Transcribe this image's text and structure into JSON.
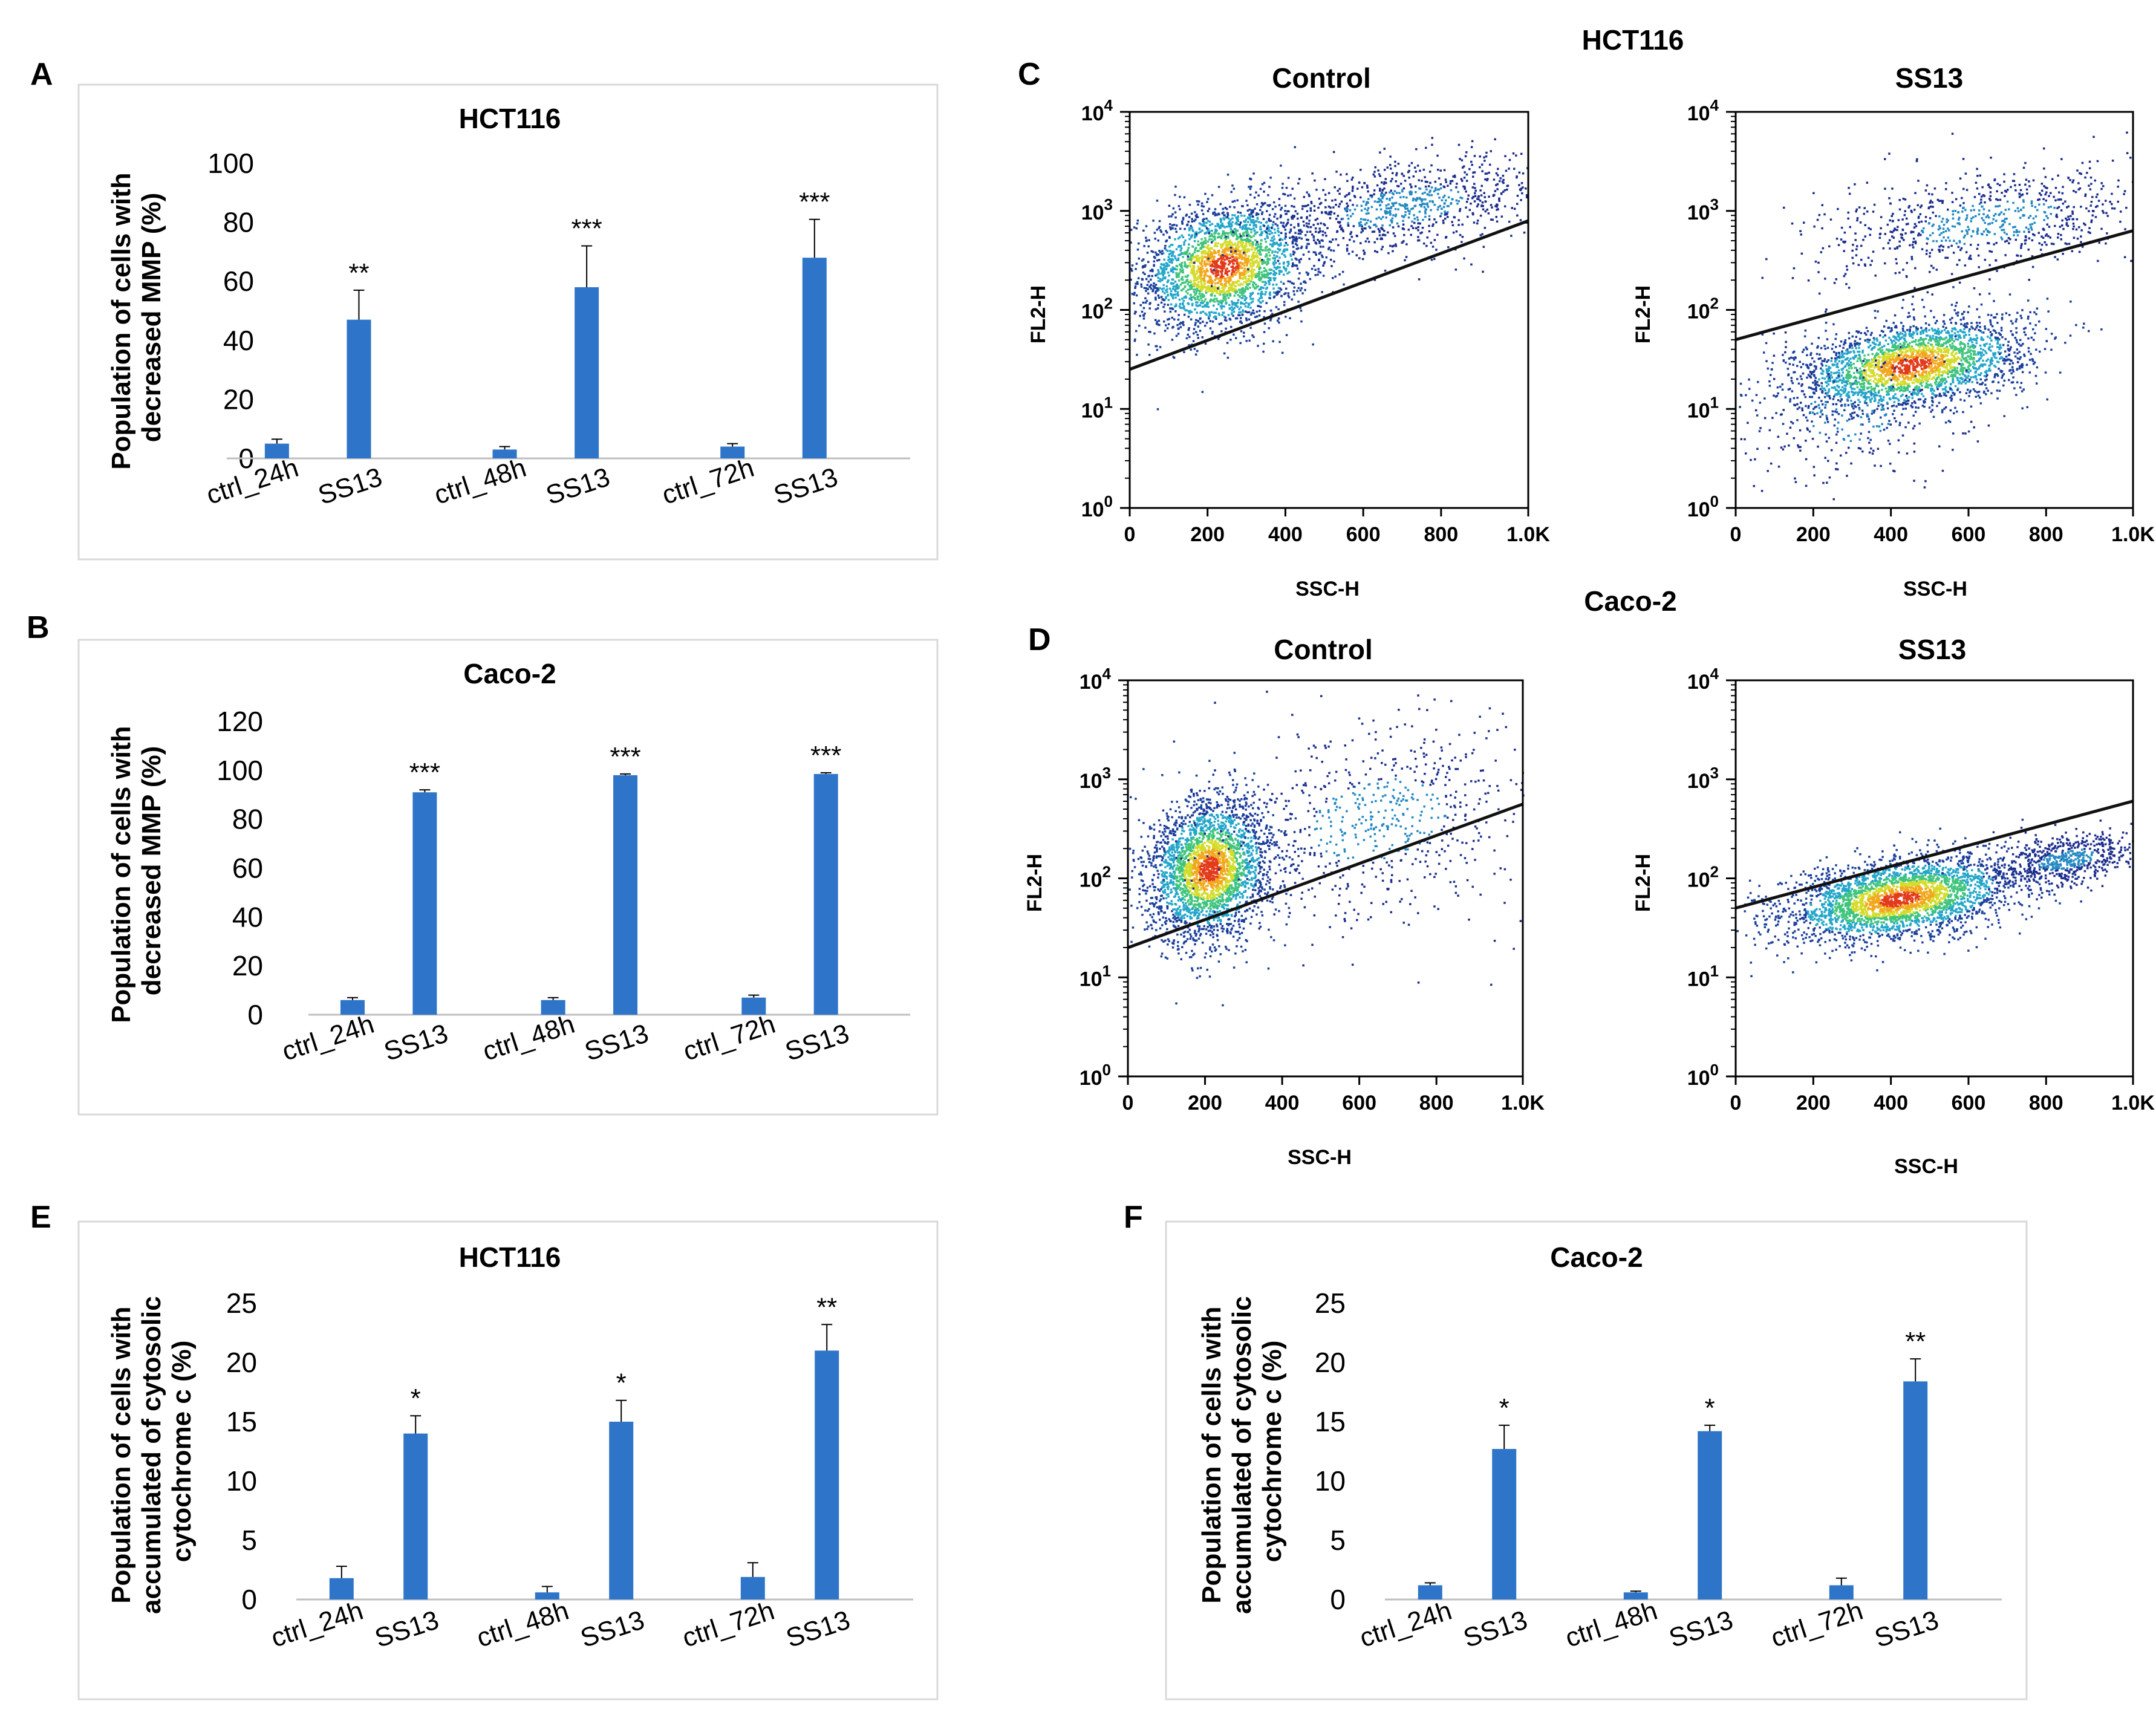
{
  "figure": {
    "panel_letters": [
      "A",
      "B",
      "C",
      "D",
      "E",
      "F"
    ],
    "flow_group_titles": [
      "HCT116",
      "Caco-2"
    ]
  },
  "colors": {
    "bar": "#2e75c9",
    "axis": "#000000",
    "frame": "#d9d9d9"
  },
  "chart_data": [
    {
      "panel": "A",
      "type": "bar",
      "title": "HCT116",
      "ylabel": [
        "Population of cells with",
        "decreased MMP (%)"
      ],
      "categories": [
        "ctrl_24h",
        "SS13",
        "ctrl_48h",
        "SS13",
        "ctrl_72h",
        "SS13"
      ],
      "values": [
        5,
        47,
        3,
        58,
        4,
        68
      ],
      "errors": [
        1.5,
        10,
        1,
        14,
        1,
        13
      ],
      "significance": [
        "",
        "**",
        "",
        "***",
        "",
        "***"
      ],
      "yticks": [
        "0",
        "20",
        "40",
        "60",
        "80",
        "100"
      ],
      "ylim": [
        0,
        100
      ]
    },
    {
      "panel": "B",
      "type": "bar",
      "title": "Caco-2",
      "ylabel": [
        "Population of cells with",
        "decreased MMP (%)"
      ],
      "categories": [
        "ctrl_24h",
        "SS13",
        "ctrl_48h",
        "SS13",
        "ctrl_72h",
        "SS13"
      ],
      "values": [
        6,
        91,
        6,
        98,
        7,
        98.5
      ],
      "errors": [
        1,
        1,
        1,
        0.5,
        1,
        0.5
      ],
      "significance": [
        "",
        "***",
        "",
        "***",
        "",
        "***"
      ],
      "yticks": [
        "0",
        "20",
        "40",
        "60",
        "80",
        "100",
        "120"
      ],
      "ylim": [
        0,
        120
      ]
    },
    {
      "panel": "E",
      "type": "bar",
      "title": "HCT116",
      "ylabel": [
        "Population of cells with",
        "accumulated of cytosolic",
        "cytochrome c (%)"
      ],
      "categories": [
        "ctrl_24h",
        "SS13",
        "ctrl_48h",
        "SS13",
        "ctrl_72h",
        "SS13"
      ],
      "values": [
        1.8,
        14,
        0.6,
        15,
        1.9,
        21
      ],
      "errors": [
        1,
        1.5,
        0.5,
        1.8,
        1.2,
        2.2
      ],
      "significance": [
        "",
        "*",
        "",
        "*",
        "",
        "**"
      ],
      "yticks": [
        "0",
        "5",
        "10",
        "15",
        "20",
        "25"
      ],
      "ylim": [
        0,
        25
      ]
    },
    {
      "panel": "F",
      "type": "bar",
      "title": "Caco-2",
      "ylabel": [
        "Population of cells with",
        "accumulated of cytosolic",
        "cytochrome c (%)"
      ],
      "categories": [
        "ctrl_24h",
        "SS13",
        "ctrl_48h",
        "SS13",
        "ctrl_72h",
        "SS13"
      ],
      "values": [
        1.2,
        12.7,
        0.6,
        14.2,
        1.2,
        18.4
      ],
      "errors": [
        0.2,
        2,
        0.1,
        0.5,
        0.6,
        1.9
      ],
      "significance": [
        "",
        "*",
        "",
        "*",
        "",
        "**"
      ],
      "yticks": [
        "0",
        "5",
        "10",
        "15",
        "20",
        "25"
      ],
      "ylim": [
        0,
        25
      ]
    },
    {
      "panel": "C",
      "type": "scatter",
      "group": "HCT116",
      "title": "Control",
      "xlabel": "SSC-H",
      "ylabel": "FL2-H",
      "xticks": [
        "0",
        "200",
        "400",
        "600",
        "800",
        "1.0K"
      ],
      "yticks": [
        "10^0",
        "10^1",
        "10^2",
        "10^3",
        "10^4"
      ],
      "xlim": [
        0,
        1024
      ],
      "ylog_range": [
        0,
        4
      ],
      "gate": [
        [
          0,
          1.4
        ],
        [
          1024,
          2.9
        ]
      ],
      "clusters": [
        {
          "x": 240,
          "y": 2.45,
          "sx": 110,
          "sy": 0.32,
          "n": 2600,
          "hot": true
        },
        {
          "x": 700,
          "y": 3.05,
          "sx": 200,
          "sy": 0.22,
          "n": 900,
          "hot": false
        }
      ]
    },
    {
      "panel": "C",
      "type": "scatter",
      "group": "HCT116",
      "title": "SS13",
      "xlabel": "SSC-H",
      "ylabel": "FL2-H",
      "xticks": [
        "0",
        "200",
        "400",
        "600",
        "800",
        "1.0K"
      ],
      "yticks": [
        "10^0",
        "10^1",
        "10^2",
        "10^3",
        "10^4"
      ],
      "xlim": [
        0,
        1024
      ],
      "ylog_range": [
        0,
        4
      ],
      "gate": [
        [
          0,
          1.7
        ],
        [
          1024,
          2.8
        ]
      ],
      "clusters": [
        {
          "x": 450,
          "y": 1.45,
          "sx": 150,
          "sy": 0.22,
          "n": 2600,
          "hot": true
        },
        {
          "x": 650,
          "y": 2.9,
          "sx": 220,
          "sy": 0.25,
          "n": 800,
          "hot": false
        },
        {
          "x": 300,
          "y": 1.0,
          "sx": 150,
          "sy": 0.4,
          "n": 250,
          "hot": false
        }
      ]
    },
    {
      "panel": "D",
      "type": "scatter",
      "group": "Caco-2",
      "title": "Control",
      "xlabel": "SSC-H",
      "ylabel": "FL2-H",
      "xticks": [
        "0",
        "200",
        "400",
        "600",
        "800",
        "1.0K"
      ],
      "yticks": [
        "10^0",
        "10^1",
        "10^2",
        "10^3",
        "10^4"
      ],
      "xlim": [
        0,
        1024
      ],
      "ylog_range": [
        0,
        4
      ],
      "gate": [
        [
          0,
          1.3
        ],
        [
          1024,
          2.75
        ]
      ],
      "clusters": [
        {
          "x": 210,
          "y": 2.1,
          "sx": 80,
          "sy": 0.35,
          "n": 2800,
          "hot": true
        },
        {
          "x": 650,
          "y": 2.6,
          "sx": 220,
          "sy": 0.5,
          "n": 700,
          "hot": false
        }
      ]
    },
    {
      "panel": "D",
      "type": "scatter",
      "group": "Caco-2",
      "title": "SS13",
      "xlabel": "SSC-H",
      "ylabel": "FL2-H",
      "xticks": [
        "0",
        "200",
        "400",
        "600",
        "800",
        "1.0K"
      ],
      "yticks": [
        "10^0",
        "10^1",
        "10^2",
        "10^3",
        "10^4"
      ],
      "xlim": [
        0,
        1024
      ],
      "ylog_range": [
        0,
        4
      ],
      "gate": [
        [
          0,
          1.7
        ],
        [
          1024,
          2.78
        ]
      ],
      "clusters": [
        {
          "x": 420,
          "y": 1.8,
          "sx": 150,
          "sy": 0.2,
          "n": 3000,
          "hot": true
        },
        {
          "x": 850,
          "y": 2.2,
          "sx": 90,
          "sy": 0.12,
          "n": 600,
          "hot": false
        }
      ]
    }
  ]
}
